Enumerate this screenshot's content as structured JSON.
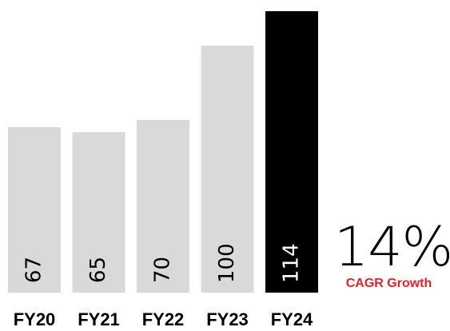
{
  "chart_data": {
    "type": "bar",
    "title": "",
    "xlabel": "",
    "ylabel": "",
    "categories": [
      "FY20",
      "FY21",
      "FY22",
      "FY23",
      "FY24"
    ],
    "values": [
      67,
      65,
      70,
      100,
      114
    ],
    "data_labels": [
      "67",
      "65",
      "70",
      "100",
      "114"
    ],
    "highlight_index": 4,
    "grid": false,
    "axis_lines": false,
    "legend": "none"
  },
  "kpi": {
    "value": "14%",
    "label": "CAGR Growth"
  },
  "colors": {
    "bar": "#d9d9d9",
    "highlight_bar": "#000000",
    "bar_label": "#000000",
    "highlight_bar_label": "#ffffff",
    "kpi_label": "#e8222a"
  }
}
